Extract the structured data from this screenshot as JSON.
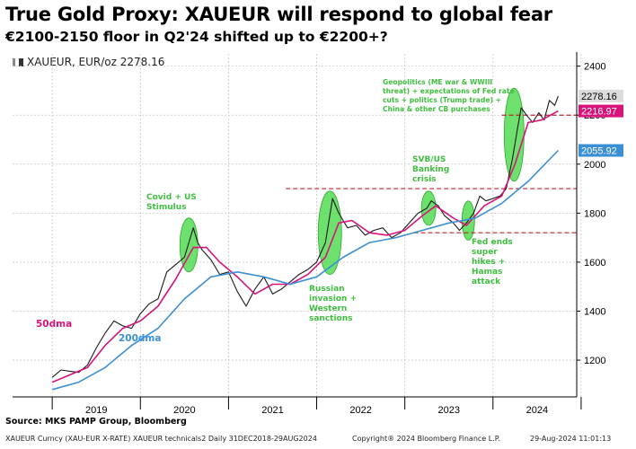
{
  "header": {
    "title": "True Gold Proxy: XAUEUR will respond to global fear",
    "subtitle": "€2100-2150 floor in Q2'24 shifted up to €2200+?"
  },
  "legend": {
    "label": "XAUEUR, EUR/oz 2278.16"
  },
  "footer": {
    "source": "Source: MKS PAMP Group, Bloomberg",
    "meta": "XAUEUR Curncy (XAU-EUR X-RATE) XAUEUR technicals2  Daily 31DEC2018-29AUG2024",
    "copyright": "Copyright® 2024 Bloomberg Finance L.P.",
    "timestamp": "29-Aug-2024 11:01:13"
  },
  "colors": {
    "price": "#1a1a1a",
    "dma50": "#d6147a",
    "dma200": "#3b8fd4",
    "highlight": "#3dd63d",
    "guide": "#c0232b",
    "annotation": "#3fbf3f"
  },
  "chart_data": {
    "type": "line",
    "title": "True Gold Proxy: XAUEUR will respond to global fear",
    "subtitle": "€2100-2150 floor in Q2'24 shifted up to €2200+?",
    "ylim": [
      1050,
      2450
    ],
    "yticks": [
      1200,
      1400,
      1600,
      1800,
      2000,
      2200,
      2400
    ],
    "xticks": [
      "2019",
      "2020",
      "2021",
      "2022",
      "2023",
      "2024"
    ],
    "series": [
      {
        "name": "XAUEUR",
        "label": "XAUEUR, EUR/oz 2278.16",
        "last": 2278.16,
        "points": [
          [
            2019.0,
            1130
          ],
          [
            2019.1,
            1160
          ],
          [
            2019.2,
            1155
          ],
          [
            2019.3,
            1150
          ],
          [
            2019.4,
            1180
          ],
          [
            2019.5,
            1250
          ],
          [
            2019.6,
            1310
          ],
          [
            2019.7,
            1360
          ],
          [
            2019.8,
            1340
          ],
          [
            2019.9,
            1330
          ],
          [
            2020.0,
            1390
          ],
          [
            2020.1,
            1430
          ],
          [
            2020.2,
            1450
          ],
          [
            2020.3,
            1560
          ],
          [
            2020.4,
            1590
          ],
          [
            2020.5,
            1620
          ],
          [
            2020.6,
            1740
          ],
          [
            2020.65,
            1680
          ],
          [
            2020.7,
            1650
          ],
          [
            2020.8,
            1610
          ],
          [
            2020.9,
            1550
          ],
          [
            2021.0,
            1560
          ],
          [
            2021.1,
            1480
          ],
          [
            2021.2,
            1420
          ],
          [
            2021.3,
            1490
          ],
          [
            2021.4,
            1540
          ],
          [
            2021.5,
            1470
          ],
          [
            2021.6,
            1490
          ],
          [
            2021.7,
            1520
          ],
          [
            2021.8,
            1550
          ],
          [
            2021.9,
            1570
          ],
          [
            2022.0,
            1600
          ],
          [
            2022.1,
            1680
          ],
          [
            2022.18,
            1860
          ],
          [
            2022.25,
            1800
          ],
          [
            2022.35,
            1740
          ],
          [
            2022.45,
            1750
          ],
          [
            2022.55,
            1710
          ],
          [
            2022.65,
            1730
          ],
          [
            2022.75,
            1740
          ],
          [
            2022.85,
            1700
          ],
          [
            2022.95,
            1720
          ],
          [
            2023.05,
            1760
          ],
          [
            2023.15,
            1800
          ],
          [
            2023.25,
            1820
          ],
          [
            2023.3,
            1850
          ],
          [
            2023.38,
            1830
          ],
          [
            2023.45,
            1790
          ],
          [
            2023.55,
            1760
          ],
          [
            2023.62,
            1730
          ],
          [
            2023.7,
            1760
          ],
          [
            2023.78,
            1800
          ],
          [
            2023.85,
            1870
          ],
          [
            2023.92,
            1850
          ],
          [
            2024.0,
            1860
          ],
          [
            2024.08,
            1870
          ],
          [
            2024.15,
            1900
          ],
          [
            2024.22,
            2020
          ],
          [
            2024.28,
            2150
          ],
          [
            2024.32,
            2230
          ],
          [
            2024.38,
            2200
          ],
          [
            2024.45,
            2170
          ],
          [
            2024.52,
            2210
          ],
          [
            2024.58,
            2180
          ],
          [
            2024.64,
            2260
          ],
          [
            2024.7,
            2240
          ],
          [
            2024.74,
            2278.16
          ]
        ]
      },
      {
        "name": "50dma",
        "last": 2216.97,
        "points": [
          [
            2019.0,
            1110
          ],
          [
            2019.2,
            1140
          ],
          [
            2019.4,
            1170
          ],
          [
            2019.6,
            1260
          ],
          [
            2019.8,
            1330
          ],
          [
            2020.0,
            1360
          ],
          [
            2020.2,
            1420
          ],
          [
            2020.4,
            1530
          ],
          [
            2020.6,
            1660
          ],
          [
            2020.75,
            1660
          ],
          [
            2020.9,
            1600
          ],
          [
            2021.1,
            1540
          ],
          [
            2021.3,
            1470
          ],
          [
            2021.5,
            1510
          ],
          [
            2021.7,
            1510
          ],
          [
            2021.9,
            1550
          ],
          [
            2022.1,
            1620
          ],
          [
            2022.25,
            1760
          ],
          [
            2022.4,
            1770
          ],
          [
            2022.6,
            1720
          ],
          [
            2022.8,
            1710
          ],
          [
            2023.0,
            1730
          ],
          [
            2023.2,
            1790
          ],
          [
            2023.35,
            1830
          ],
          [
            2023.55,
            1780
          ],
          [
            2023.7,
            1750
          ],
          [
            2023.9,
            1830
          ],
          [
            2024.1,
            1870
          ],
          [
            2024.25,
            2000
          ],
          [
            2024.4,
            2170
          ],
          [
            2024.55,
            2180
          ],
          [
            2024.74,
            2216.97
          ]
        ]
      },
      {
        "name": "200dma",
        "last": 2055.92,
        "points": [
          [
            2019.0,
            1080
          ],
          [
            2019.3,
            1110
          ],
          [
            2019.6,
            1170
          ],
          [
            2019.9,
            1260
          ],
          [
            2020.2,
            1330
          ],
          [
            2020.5,
            1450
          ],
          [
            2020.8,
            1540
          ],
          [
            2021.1,
            1560
          ],
          [
            2021.4,
            1540
          ],
          [
            2021.7,
            1510
          ],
          [
            2022.0,
            1540
          ],
          [
            2022.3,
            1620
          ],
          [
            2022.6,
            1680
          ],
          [
            2022.9,
            1700
          ],
          [
            2023.2,
            1730
          ],
          [
            2023.5,
            1760
          ],
          [
            2023.8,
            1780
          ],
          [
            2024.1,
            1840
          ],
          [
            2024.4,
            1930
          ],
          [
            2024.74,
            2055.92
          ]
        ]
      }
    ],
    "reference_lines": [
      2200,
      1900,
      1720
    ],
    "annotations": [
      "Covid + US Stimulus",
      "Russian invasion + Western sanctions",
      "SVB/US Banking crisis",
      "Fed ends super hikes + Hamas attack",
      "Geopolitics (ME war & WWIII threat) + expectations of Fed rate cuts + politics (Trump trade) + China & other CB purchases"
    ]
  }
}
